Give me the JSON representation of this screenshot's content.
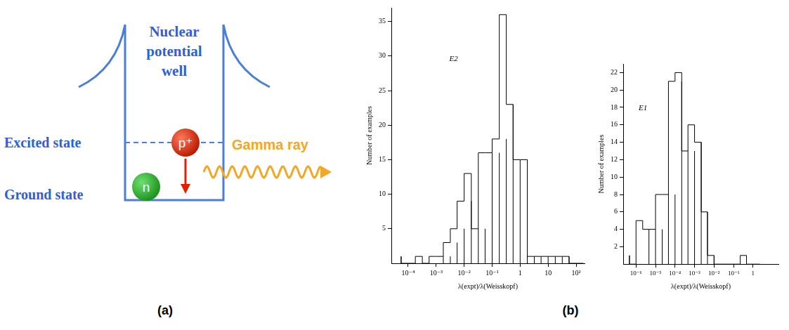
{
  "diagram": {
    "well_label": "Nuclear potential well",
    "excited_state": "Excited state",
    "ground_state": "Ground state",
    "proton": "p⁺",
    "neutron": "n",
    "emission": "Gamma ray",
    "caption": "(a)"
  },
  "charts_caption": "(b)",
  "chart_data": [
    {
      "type": "histogram",
      "annotation": "E2",
      "x_label": "λ(expt)/λ(Weisskopf)",
      "y_label": "Number of examples",
      "color": "#000000",
      "log": "x",
      "grid": false,
      "bins": [
        5.6e-05,
        0.0001,
        0.00018,
        0.00032,
        0.00056,
        0.001,
        0.0018,
        0.0032,
        0.0056,
        0.01,
        0.018,
        0.032,
        0.056,
        0.1,
        0.18,
        0.32,
        0.56,
        1,
        1.8,
        3.2,
        5.6,
        10,
        18,
        32,
        56,
        100,
        180
      ],
      "counts": [
        1,
        0,
        0,
        1,
        0,
        1,
        1,
        3,
        5,
        9,
        13,
        5,
        16,
        16,
        18,
        36,
        23,
        15,
        15,
        1,
        1,
        1,
        1,
        1,
        1,
        0
      ],
      "xlim": [
        2.5e-05,
        200
      ],
      "xticks": [
        {
          "value": 0.0001,
          "label": "10⁻⁴"
        },
        {
          "value": 0.001,
          "label": "10⁻³"
        },
        {
          "value": 0.01,
          "label": "10⁻²"
        },
        {
          "value": 0.1,
          "label": "10⁻¹"
        },
        1,
        10,
        {
          "value": 100,
          "label": "10²"
        }
      ],
      "ylim": [
        0,
        37
      ],
      "yticks": [
        5,
        10,
        15,
        20,
        25,
        30,
        35
      ]
    },
    {
      "type": "histogram",
      "annotation": "E1",
      "x_label": "λ(expt)/λ(Weisskopf)",
      "y_label": "Number of examples",
      "color": "#000000",
      "log": "x",
      "grid": false,
      "bins": [
        4.6e-07,
        1e-06,
        2.2e-06,
        4.6e-06,
        1e-05,
        2.2e-05,
        4.6e-05,
        0.0001,
        0.00022,
        0.00046,
        0.001,
        0.0022,
        0.0046,
        0.01,
        0.022,
        0.046,
        0.1,
        0.22,
        0.46,
        1,
        2.2
      ],
      "counts": [
        1,
        0,
        5,
        4,
        4,
        8,
        8,
        21,
        22,
        13,
        16,
        14,
        6,
        1,
        0,
        0,
        0,
        0,
        1,
        0
      ],
      "xlim": [
        2.2e-07,
        20
      ],
      "xticks": [
        {
          "value": 1e-06,
          "label": "10⁻⁶"
        },
        {
          "value": 1e-05,
          "label": "10⁻⁵"
        },
        {
          "value": 0.0001,
          "label": "10⁻⁴"
        },
        {
          "value": 0.001,
          "label": "10⁻³"
        },
        {
          "value": 0.01,
          "label": "10⁻²"
        },
        {
          "value": 0.1,
          "label": "10⁻¹"
        },
        1
      ],
      "ylim": [
        0,
        23
      ],
      "yticks": [
        2,
        4,
        6,
        8,
        10,
        12,
        14,
        16,
        18,
        20,
        22
      ]
    }
  ]
}
